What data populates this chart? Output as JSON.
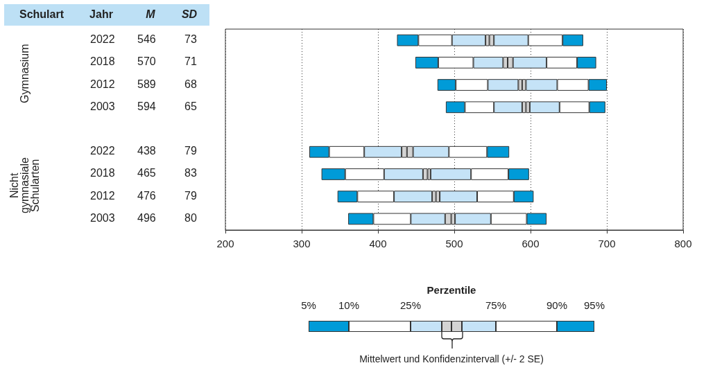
{
  "chart_data": [
    {
      "type": "other",
      "categories": [
        "Schulart",
        "Jahr",
        "M",
        "SD"
      ],
      "y_categories": [
        "Gymnasium",
        "Nicht gymnasiale Schularten"
      ],
      "cell_labels": [
        [
          "2022",
          "546",
          "73"
        ],
        [
          "2018",
          "570",
          "71"
        ],
        [
          "2012",
          "589",
          "68"
        ],
        [
          "2003",
          "594",
          "65"
        ],
        [
          "2022",
          "438",
          "79"
        ],
        [
          "2018",
          "465",
          "83"
        ],
        [
          "2012",
          "476",
          "79"
        ],
        [
          "2003",
          "496",
          "80"
        ]
      ]
    },
    {
      "type": "bar",
      "orientation": "horizontal",
      "categories": [
        null,
        null,
        null,
        null,
        null,
        null,
        null,
        null,
        null
      ],
      "series": [
        {
          "color": "#009bd8",
          "base": [
            425,
            449,
            478,
            489,
            null,
            310,
            326,
            347,
            361
          ],
          "values": [
            28,
            30,
            24,
            25,
            null,
            26,
            31,
            26,
            33
          ]
        },
        {
          "color": "#ffffff",
          "base": [
            453,
            479,
            502,
            514,
            null,
            336,
            357,
            373,
            394
          ],
          "values": [
            44,
            46,
            42,
            38,
            null,
            46,
            51,
            48,
            49
          ]
        },
        {
          "color": "#c5e3f7",
          "base": [
            497,
            525,
            544,
            552,
            null,
            382,
            408,
            421,
            443
          ],
          "values": [
            44,
            39,
            40,
            37,
            null,
            49,
            51,
            50,
            45
          ]
        },
        {
          "color": "#d3d3d3",
          "base": [
            541,
            564,
            584,
            589,
            null,
            431,
            459,
            471,
            488
          ],
          "values": [
            5,
            6,
            5,
            5,
            null,
            7,
            6,
            5,
            8
          ]
        },
        {
          "color": "#d3d3d3",
          "base": [
            546,
            570,
            589,
            594,
            null,
            438,
            465,
            476,
            496
          ],
          "values": [
            6,
            7,
            5,
            5,
            null,
            8,
            4,
            5,
            5
          ]
        },
        {
          "color": "#c5e3f7",
          "base": [
            552,
            577,
            594,
            599,
            null,
            446,
            469,
            481,
            501
          ],
          "values": [
            45,
            44,
            41,
            39,
            null,
            47,
            53,
            49,
            47
          ]
        },
        {
          "color": "#ffffff",
          "base": [
            597,
            621,
            635,
            638,
            null,
            493,
            522,
            530,
            548
          ],
          "values": [
            45,
            40,
            41,
            39,
            null,
            50,
            49,
            48,
            47
          ]
        },
        {
          "color": "#009bd8",
          "base": [
            642,
            661,
            676,
            677,
            null,
            543,
            571,
            578,
            595
          ],
          "values": [
            27,
            25,
            24,
            21,
            null,
            29,
            27,
            26,
            26
          ]
        }
      ],
      "xlim": [
        200,
        800
      ],
      "xticks": [
        200,
        300,
        400,
        500,
        600,
        700,
        800
      ],
      "grid": "x",
      "tick_labels": "x",
      "legend_title": "Perzentile",
      "annotations": [
        "5%",
        "10%",
        "25%",
        "75%",
        "90%",
        "95%",
        "Mittelwert und Konfidenzintervall (+/- 2 SE)"
      ]
    }
  ]
}
